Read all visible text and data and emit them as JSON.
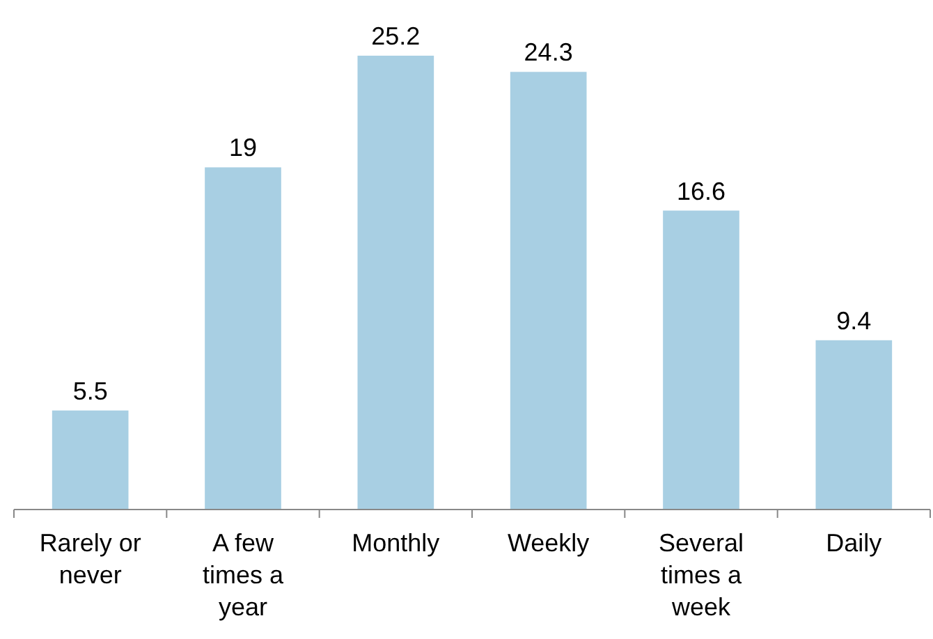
{
  "chart_data": {
    "type": "bar",
    "categories": [
      "Rarely or never",
      "A few times a year",
      "Monthly",
      "Weekly",
      "Several times a week",
      "Daily"
    ],
    "values": [
      5.5,
      19,
      25.2,
      24.3,
      16.6,
      9.4
    ],
    "color": "#a8cfe3",
    "data_labels": true
  }
}
